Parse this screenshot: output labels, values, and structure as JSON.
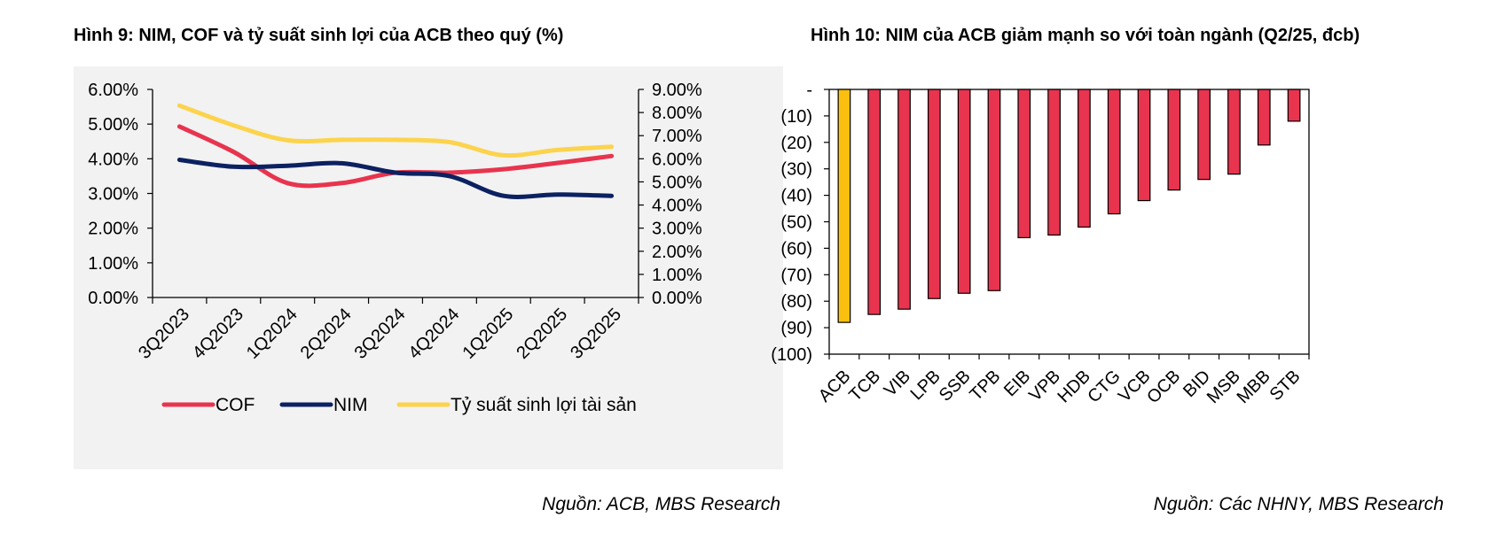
{
  "left": {
    "title": "Hình 9: NIM, COF và tỷ suất sinh lợi của ACB theo quý (%)",
    "source": "Nguồn: ACB, MBS Research",
    "chart_data": {
      "type": "line",
      "categories": [
        "3Q2023",
        "4Q2023",
        "1Q2024",
        "2Q2024",
        "3Q2024",
        "4Q2024",
        "1Q2025",
        "2Q2025",
        "3Q2025"
      ],
      "y_left": {
        "min": 0,
        "max": 6,
        "ticks": [
          "0.00%",
          "1.00%",
          "2.00%",
          "3.00%",
          "4.00%",
          "5.00%",
          "6.00%"
        ]
      },
      "y_right": {
        "min": 0,
        "max": 9,
        "ticks": [
          "0.00%",
          "1.00%",
          "2.00%",
          "3.00%",
          "4.00%",
          "5.00%",
          "6.00%",
          "7.00%",
          "8.00%",
          "9.00%"
        ]
      },
      "series": [
        {
          "name": "COF",
          "axis": "left",
          "color": "#e8344e",
          "values": [
            4.93,
            4.2,
            3.3,
            3.3,
            3.6,
            3.6,
            3.7,
            3.88,
            4.08
          ]
        },
        {
          "name": "NIM",
          "axis": "left",
          "color": "#0b2161",
          "values": [
            3.97,
            3.77,
            3.8,
            3.87,
            3.6,
            3.5,
            2.93,
            2.97,
            2.93
          ]
        },
        {
          "name": "Tỷ suất sinh lợi tài sản",
          "axis": "right",
          "color": "#fcd34d",
          "values": [
            8.3,
            7.45,
            6.8,
            6.82,
            6.82,
            6.72,
            6.15,
            6.38,
            6.52
          ]
        }
      ]
    }
  },
  "right": {
    "title": "Hình 10: NIM của ACB giảm mạnh so với toàn ngành (Q2/25, đcb)",
    "source": "Nguồn: Các NHNY, MBS Research",
    "chart_data": {
      "type": "bar",
      "categories": [
        "ACB",
        "TCB",
        "VIB",
        "LPB",
        "SSB",
        "TPB",
        "EIB",
        "VPB",
        "HDB",
        "CTG",
        "VCB",
        "OCB",
        "BID",
        "MSB",
        "MBB",
        "STB"
      ],
      "values": [
        -88,
        -85,
        -83,
        -79,
        -77,
        -76,
        -56,
        -55,
        -52,
        -47,
        -42,
        -38,
        -34,
        -32,
        -21,
        -12
      ],
      "highlight": "ACB",
      "highlight_color": "#fbbf0f",
      "bar_color": "#e8344e",
      "ylim": [
        -100,
        0
      ],
      "y_ticks": [
        "-",
        "(10)",
        "(20)",
        "(30)",
        "(40)",
        "(50)",
        "(60)",
        "(70)",
        "(80)",
        "(90)",
        "(100)"
      ]
    }
  }
}
